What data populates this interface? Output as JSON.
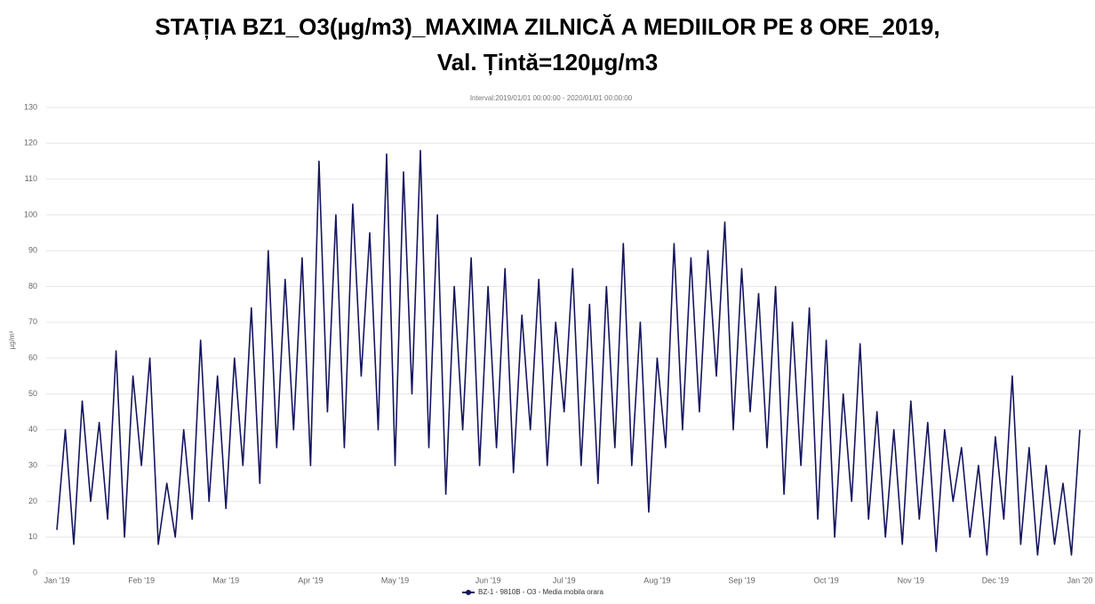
{
  "chart_data": {
    "type": "line",
    "title": "STAȚIA BZ1_O3(µg/m3)_MAXIMA ZILNICĂ A MEDIILOR PE 8 ORE_2019,",
    "title_line2": "Val. Țintă=120µg/m3",
    "subtitle": "Interval:2019/01/01 00:00:00 - 2020/01/01 00:00:00",
    "y_label": "µg/m³",
    "categories": [
      "Jan '19",
      null,
      null,
      null,
      null,
      null,
      null,
      null,
      null,
      null,
      "Feb '19",
      null,
      null,
      null,
      null,
      null,
      null,
      null,
      null,
      null,
      "Mar '19",
      null,
      null,
      null,
      null,
      null,
      null,
      null,
      null,
      null,
      "Apr '19",
      null,
      null,
      null,
      null,
      null,
      null,
      null,
      null,
      null,
      "May '19",
      null,
      null,
      null,
      null,
      null,
      null,
      null,
      null,
      null,
      null,
      "Jun '19",
      null,
      null,
      null,
      null,
      null,
      null,
      null,
      null,
      "Jul '19",
      null,
      null,
      null,
      null,
      null,
      null,
      null,
      null,
      null,
      null,
      "Aug '19",
      null,
      null,
      null,
      null,
      null,
      null,
      null,
      null,
      null,
      "Sep '19",
      null,
      null,
      null,
      null,
      null,
      null,
      null,
      null,
      null,
      "Oct '19",
      null,
      null,
      null,
      null,
      null,
      null,
      null,
      null,
      null,
      "Nov '19",
      null,
      null,
      null,
      null,
      null,
      null,
      null,
      null,
      null,
      "Dec '19",
      null,
      null,
      null,
      null,
      null,
      null,
      null,
      null,
      null,
      "Jan '20"
    ],
    "series": [
      {
        "name": "BZ-1 - 9810B - O3 - Media mobila orara",
        "color": "#15155e",
        "values": [
          12,
          40,
          8,
          48,
          20,
          42,
          15,
          62,
          10,
          55,
          30,
          60,
          8,
          25,
          10,
          40,
          15,
          65,
          20,
          55,
          18,
          60,
          30,
          74,
          25,
          90,
          35,
          82,
          40,
          88,
          30,
          115,
          45,
          100,
          35,
          103,
          55,
          95,
          40,
          117,
          30,
          112,
          50,
          118,
          35,
          100,
          22,
          80,
          40,
          88,
          30,
          80,
          35,
          85,
          28,
          72,
          40,
          82,
          30,
          70,
          45,
          85,
          30,
          75,
          25,
          80,
          35,
          92,
          30,
          70,
          17,
          60,
          35,
          92,
          40,
          88,
          45,
          90,
          55,
          98,
          40,
          85,
          45,
          78,
          35,
          80,
          22,
          70,
          30,
          74,
          15,
          65,
          10,
          50,
          20,
          64,
          15,
          45,
          10,
          40,
          8,
          48,
          15,
          42,
          6,
          40,
          20,
          35,
          10,
          30,
          5,
          38,
          15,
          55,
          8,
          35,
          5,
          30,
          8,
          25,
          5,
          40
        ]
      }
    ],
    "ylim": [
      0,
      130
    ],
    "yticks": [
      0,
      10,
      20,
      30,
      40,
      50,
      60,
      70,
      80,
      90,
      100,
      110,
      120,
      130
    ],
    "grid": true
  }
}
